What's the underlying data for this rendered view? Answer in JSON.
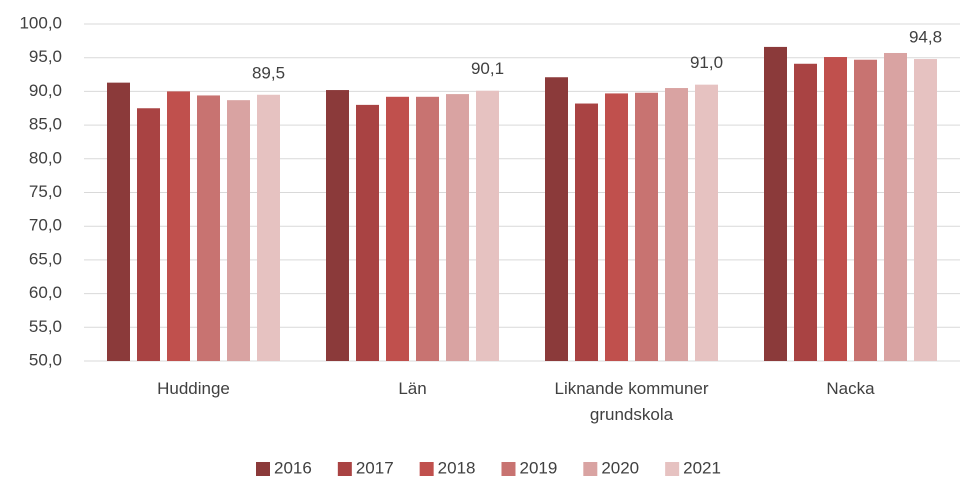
{
  "chart_data": {
    "type": "bar",
    "categories": [
      "Huddinge",
      "Län",
      "Liknande kommuner grundskola",
      "Nacka"
    ],
    "series": [
      {
        "name": "2016",
        "color": "#8b3a3a",
        "values": [
          91.3,
          90.2,
          92.1,
          96.6
        ]
      },
      {
        "name": "2017",
        "color": "#a94343",
        "values": [
          87.5,
          88.0,
          88.2,
          94.1
        ]
      },
      {
        "name": "2018",
        "color": "#c0504d",
        "values": [
          90.0,
          89.2,
          89.7,
          95.1
        ]
      },
      {
        "name": "2019",
        "color": "#c87371",
        "values": [
          89.4,
          89.2,
          89.8,
          94.7
        ]
      },
      {
        "name": "2020",
        "color": "#d9a3a2",
        "values": [
          88.7,
          89.6,
          90.5,
          95.7
        ]
      },
      {
        "name": "2021",
        "color": "#e6c2c1",
        "values": [
          89.5,
          90.1,
          91.0,
          94.8
        ],
        "value_labels": [
          "89,5",
          "90,1",
          "91,0",
          "94,8"
        ]
      }
    ],
    "ylim": [
      50,
      100
    ],
    "yticks": [
      {
        "value": 50,
        "label": "50,0"
      },
      {
        "value": 55,
        "label": "55,0"
      },
      {
        "value": 60,
        "label": "60,0"
      },
      {
        "value": 65,
        "label": "65,0"
      },
      {
        "value": 70,
        "label": "70,0"
      },
      {
        "value": 75,
        "label": "75,0"
      },
      {
        "value": 80,
        "label": "80,0"
      },
      {
        "value": 85,
        "label": "85,0"
      },
      {
        "value": 90,
        "label": "90,0"
      },
      {
        "value": 95,
        "label": "95,0"
      },
      {
        "value": 100,
        "label": "100,0"
      }
    ],
    "grid": true,
    "legend": "bottom"
  }
}
